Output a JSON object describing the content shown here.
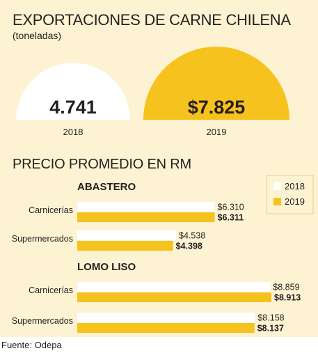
{
  "title": "EXPORTACIONES DE CARNE CHILENA",
  "subtitle": "(toneladas)",
  "section_title": "PRECIO PROMEDIO EN RM",
  "footer": "Fuente: Odepa",
  "colors": {
    "background": "#fdf3d3",
    "y2018": "#ffffff",
    "y2019": "#f6c21d",
    "text": "#231f20"
  },
  "chart_data": [
    {
      "type": "pie",
      "title": "EXPORTACIONES DE CARNE CHILENA",
      "subtitle": "(toneladas)",
      "categories": [
        "2018",
        "2019"
      ],
      "values": [
        4741,
        7825
      ],
      "value_labels": [
        "4.741",
        "$7.825"
      ]
    },
    {
      "type": "bar",
      "orientation": "horizontal",
      "title": "PRECIO PROMEDIO EN RM",
      "legend": [
        "2018",
        "2019"
      ],
      "legend_position": "top-right",
      "groups": [
        {
          "name": "ABASTERO",
          "categories": [
            "Carnicerías",
            "Supermercados"
          ],
          "series": [
            {
              "name": "2018",
              "values": [
                6310,
                4538
              ],
              "labels": [
                "$6.310",
                "$4.538"
              ]
            },
            {
              "name": "2019",
              "values": [
                6311,
                4398
              ],
              "labels": [
                "$6.311",
                "$4.398"
              ]
            }
          ]
        },
        {
          "name": "LOMO LISO",
          "categories": [
            "Carnicerías",
            "Supermercados"
          ],
          "series": [
            {
              "name": "2018",
              "values": [
                8859,
                8158
              ],
              "labels": [
                "$8.859",
                "$8.158"
              ]
            },
            {
              "name": "2019",
              "values": [
                8913,
                8137
              ],
              "labels": [
                "$8.913",
                "$8.137"
              ]
            }
          ]
        }
      ]
    }
  ]
}
